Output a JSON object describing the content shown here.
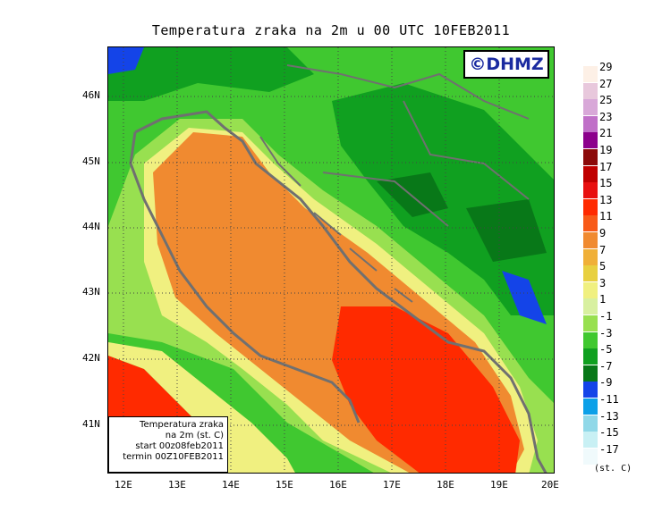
{
  "title": "Temperatura zraka na 2m u 00 UTC 10FEB2011",
  "logo": "©DHMZ",
  "infobox": [
    "Temperatura zraka",
    "na 2m (st. C)",
    "start 00z08feb2011",
    "termin 00Z10FEB2011"
  ],
  "y_ticks": [
    "46N",
    "45N",
    "44N",
    "43N",
    "42N",
    "41N"
  ],
  "x_ticks": [
    "12E",
    "13E",
    "14E",
    "15E",
    "16E",
    "17E",
    "18E",
    "19E",
    "20E"
  ],
  "legend": {
    "units": "(st. C)",
    "items": [
      {
        "label": "29",
        "color": "#fdf0e6"
      },
      {
        "label": "27",
        "color": "#e8c8dc"
      },
      {
        "label": "25",
        "color": "#d8a8d8"
      },
      {
        "label": "23",
        "color": "#c070c8"
      },
      {
        "label": "21",
        "color": "#8c008c"
      },
      {
        "label": "19",
        "color": "#8c0a0a"
      },
      {
        "label": "17",
        "color": "#c00000"
      },
      {
        "label": "15",
        "color": "#e81010"
      },
      {
        "label": "13",
        "color": "#ff2a00"
      },
      {
        "label": "11",
        "color": "#f85a18"
      },
      {
        "label": "9",
        "color": "#f08a30"
      },
      {
        "label": "7",
        "color": "#f0b038"
      },
      {
        "label": "5",
        "color": "#e8d040"
      },
      {
        "label": "3",
        "color": "#f0f080"
      },
      {
        "label": "1",
        "color": "#d8f0a0"
      },
      {
        "label": "-1",
        "color": "#98e050"
      },
      {
        "label": "-3",
        "color": "#40c830"
      },
      {
        "label": "-5",
        "color": "#10a020"
      },
      {
        "label": "-7",
        "color": "#087818"
      },
      {
        "label": "-9",
        "color": "#1444e8"
      },
      {
        "label": "-11",
        "color": "#0ca0e8"
      },
      {
        "label": "-13",
        "color": "#90d8e8"
      },
      {
        "label": "-15",
        "color": "#c8f0f4"
      },
      {
        "label": "-17",
        "color": "#f0fafc"
      }
    ]
  }
}
